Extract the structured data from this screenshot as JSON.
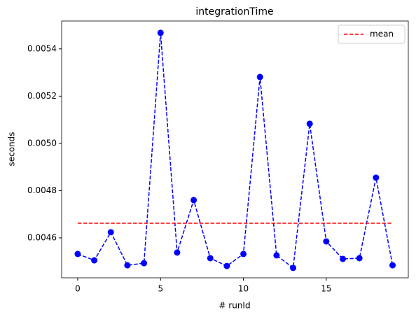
{
  "chart_data": {
    "type": "line",
    "title": "integrationTime",
    "xlabel": "# runId",
    "ylabel": "seconds",
    "x": [
      0,
      1,
      2,
      3,
      4,
      5,
      6,
      7,
      8,
      9,
      10,
      11,
      12,
      13,
      14,
      15,
      16,
      17,
      18,
      19
    ],
    "series": [
      {
        "color": "blue",
        "marker": true,
        "linestyle": "dashed",
        "values": [
          0.004532,
          0.004505,
          0.004624,
          0.004484,
          0.004493,
          0.005468,
          0.004538,
          0.00476,
          0.004514,
          0.004481,
          0.004532,
          0.005281,
          0.004526,
          0.004473,
          0.005083,
          0.004585,
          0.004511,
          0.004514,
          0.004855,
          0.004484
        ]
      },
      {
        "name": "mean",
        "color": "red",
        "marker": false,
        "linestyle": "dashed",
        "values": [
          0.004662,
          0.004662,
          0.004662,
          0.004662,
          0.004662,
          0.004662,
          0.004662,
          0.004662,
          0.004662,
          0.004662,
          0.004662,
          0.004662,
          0.004662,
          0.004662,
          0.004662,
          0.004662,
          0.004662,
          0.004662,
          0.004662,
          0.004662
        ]
      }
    ],
    "xlim": [
      -0.97,
      19.95
    ],
    "xticks": [
      0,
      5,
      10,
      15
    ],
    "ylim": [
      0.004431,
      0.005518
    ],
    "yticks": [
      0.0046,
      0.0048,
      {
        "value": 0.005,
        "label": "0.0050"
      },
      0.0052,
      0.0054
    ],
    "grid": false,
    "legend": "upper right"
  }
}
